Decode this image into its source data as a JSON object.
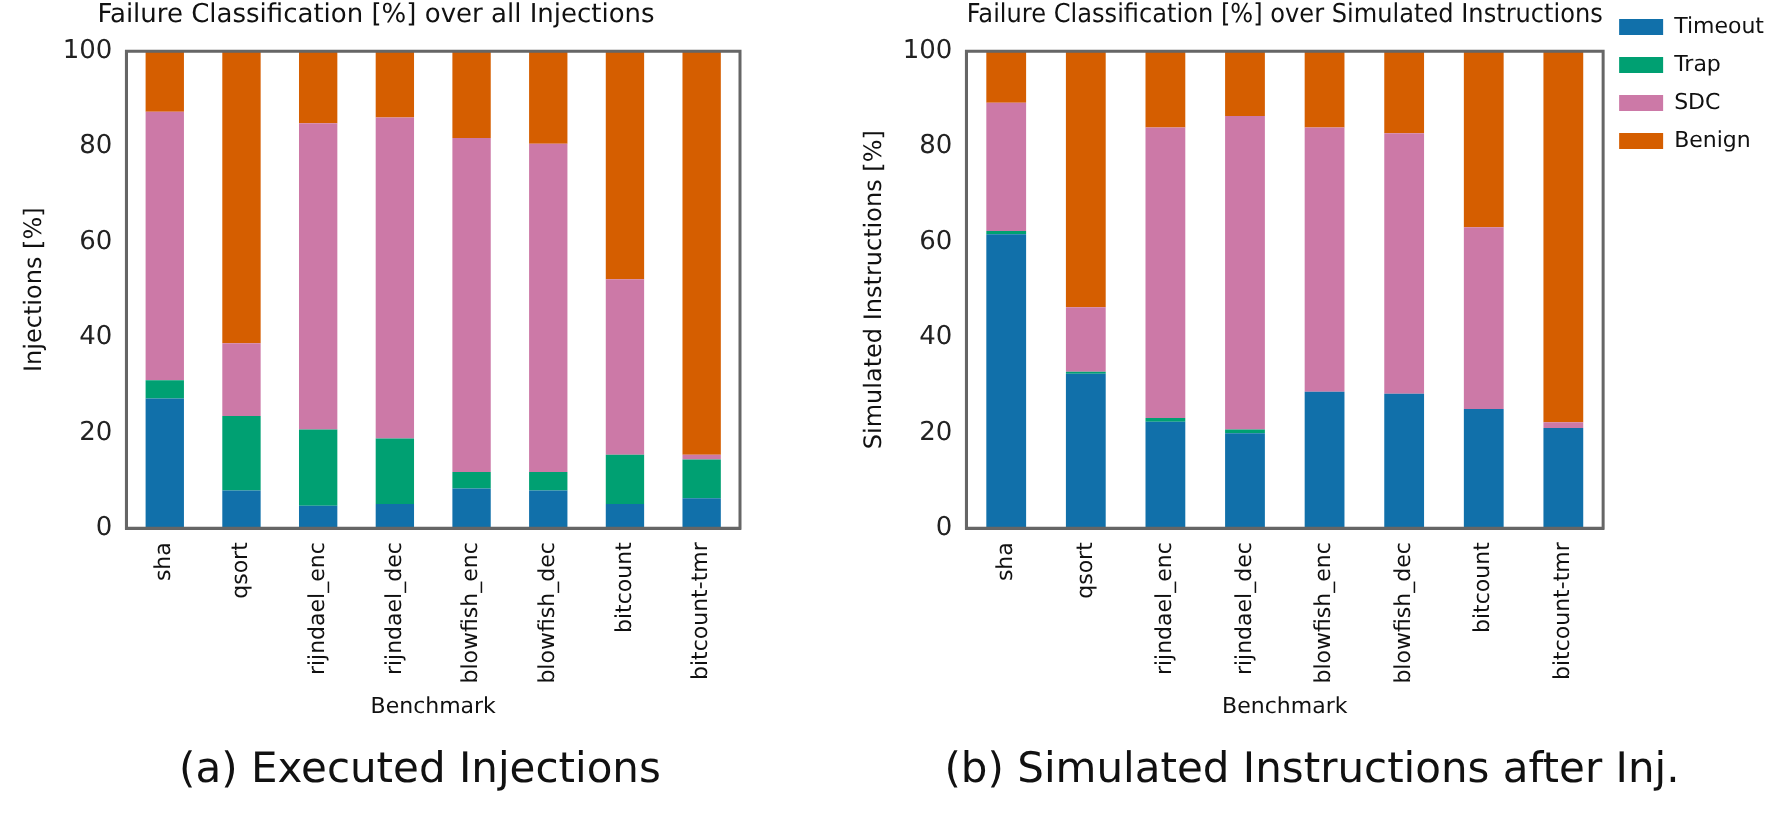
{
  "chart_data": [
    {
      "type": "bar",
      "title": "Failure Classification [%] over all Injections",
      "xlabel": "Benchmark",
      "ylabel": "Injections [%]",
      "stacked": true,
      "legend": false,
      "grid": false,
      "categories": [
        "sha",
        "qsort",
        "rijndael_enc",
        "rijndael_dec",
        "blowfish_enc",
        "blowfish_dec",
        "bitcount",
        "bitcount-tmr"
      ],
      "ylim": [
        0,
        100
      ],
      "yticks": [
        0,
        20,
        40,
        60,
        80,
        100
      ],
      "series": [
        {
          "color": "#1170aa",
          "values": [
            27.2,
            7.9,
            4.7,
            5.1,
            8.3,
            7.9,
            5.1,
            6.3
          ]
        },
        {
          "color": "#00a072",
          "values": [
            3.8,
            15.6,
            16.0,
            13.7,
            3.5,
            3.9,
            10.3,
            8.1
          ]
        },
        {
          "color": "#cc79a7",
          "values": [
            56.3,
            15.3,
            64.2,
            67.3,
            70.0,
            68.8,
            36.8,
            1.0
          ]
        },
        {
          "color": "#d55e00",
          "values": [
            12.7,
            61.2,
            15.1,
            13.9,
            18.2,
            19.4,
            47.8,
            84.6
          ]
        }
      ],
      "annotations": [
        "(a) Executed Injections"
      ]
    },
    {
      "type": "bar",
      "title": "Failure Classification [%] over Simulated Instructions",
      "xlabel": "Benchmark",
      "ylabel": "Simulated Instructions [%]",
      "stacked": true,
      "legend": "top right",
      "grid": false,
      "categories": [
        "sha",
        "qsort",
        "rijndael_enc",
        "rijndael_dec",
        "blowfish_enc",
        "blowfish_dec",
        "bitcount",
        "bitcount-tmr"
      ],
      "ylim": [
        0,
        100
      ],
      "yticks": [
        0,
        20,
        40,
        60,
        80,
        100
      ],
      "series": [
        {
          "name": "Timeout",
          "color": "#1170aa",
          "values": [
            61.6,
            32.4,
            22.3,
            19.9,
            28.6,
            28.2,
            25.0,
            21.0
          ]
        },
        {
          "name": "Trap",
          "color": "#00a072",
          "values": [
            0.7,
            0.4,
            0.8,
            0.8,
            0,
            0,
            0,
            0
          ]
        },
        {
          "name": "SDC",
          "color": "#cc79a7",
          "values": [
            26.9,
            13.5,
            60.9,
            65.7,
            55.4,
            54.6,
            38.1,
            1.2
          ]
        },
        {
          "name": "Benign",
          "color": "#d55e00",
          "values": [
            10.8,
            53.7,
            16.0,
            13.6,
            16.0,
            17.2,
            36.9,
            77.8
          ]
        }
      ],
      "annotations": [
        "(b) Simulated Instructions after Inj."
      ]
    }
  ]
}
